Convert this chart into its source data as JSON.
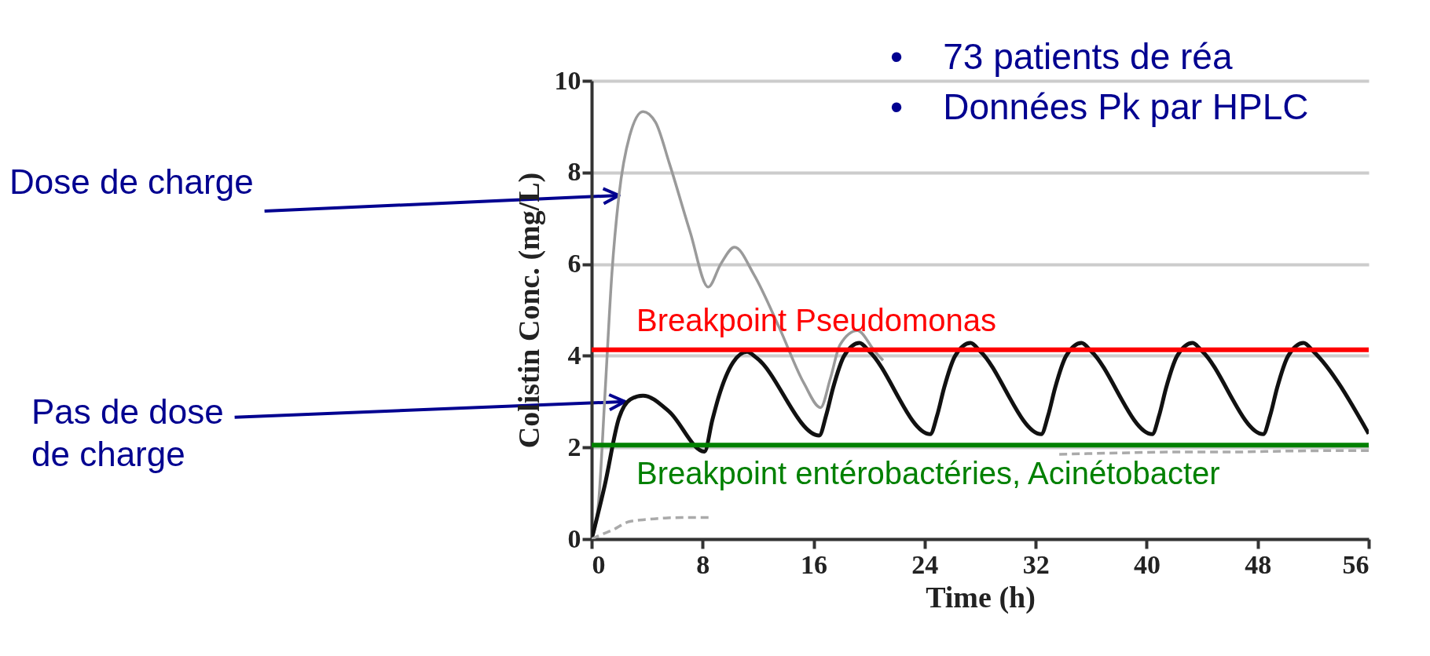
{
  "chart_data": {
    "type": "line",
    "xlabel": "Time (h)",
    "ylabel": "Colistin Conc. (mg/L)",
    "xlim": [
      0,
      56
    ],
    "ylim": [
      0,
      10
    ],
    "xticks": [
      0,
      8,
      16,
      24,
      32,
      40,
      48,
      56
    ],
    "yticks": [
      0,
      2,
      4,
      6,
      8,
      10
    ],
    "grid": "y",
    "series": [
      {
        "color": "#9a9a9a",
        "line_style": "solid",
        "x": [
          0,
          0.5,
          0.95,
          1.46,
          1.97,
          2.74,
          3.7,
          4.6,
          5.6,
          7.1,
          8.4,
          9.3,
          10.3,
          11.7,
          13.5,
          15.3,
          16.5,
          17.2,
          17.9,
          19.15,
          20.4,
          21
        ],
        "values": [
          0,
          0.8,
          3.1,
          5.8,
          7.5,
          8.8,
          9.33,
          9.1,
          8.2,
          6.7,
          5.5,
          6.0,
          6.37,
          5.77,
          4.63,
          3.4,
          2.87,
          3.5,
          4.24,
          4.55,
          4.1,
          3.9
        ]
      },
      {
        "color": "#111111",
        "line_style": "solid",
        "x": [
          0,
          0.95,
          1.97,
          2.8,
          3.7,
          5.56,
          8.13,
          8.7,
          9.15,
          10.2,
          11.2,
          11.9,
          16.4,
          16.9,
          17.4,
          18.2,
          19.3,
          20.0,
          24.4,
          24.9,
          25.4,
          26.2,
          27.3,
          28.0,
          32.4,
          32.9,
          33.4,
          34.2,
          35.3,
          36.0,
          40.4,
          40.9,
          41.4,
          42.2,
          43.3,
          44.0,
          48.4,
          48.9,
          49.4,
          50.2,
          51.3,
          52.0,
          56
        ],
        "values": [
          0,
          1.18,
          2.64,
          3.05,
          3.13,
          2.79,
          1.91,
          2.6,
          3.1,
          3.86,
          4.09,
          3.95,
          2.26,
          2.7,
          3.3,
          4.0,
          4.28,
          4.1,
          2.29,
          2.7,
          3.3,
          4.0,
          4.28,
          4.1,
          2.29,
          2.7,
          3.3,
          4.0,
          4.28,
          4.1,
          2.29,
          2.7,
          3.3,
          4.0,
          4.28,
          4.1,
          2.29,
          2.7,
          3.3,
          4.0,
          4.28,
          4.1,
          2.3
        ]
      },
      {
        "color": "#aaaaaa",
        "line_style": "dashed",
        "x": [
          0,
          0.7,
          1.46,
          2.7,
          4,
          5.3,
          6.5,
          8.5,
          20,
          33.7,
          38,
          42,
          46,
          50,
          54,
          56
        ],
        "values": [
          0,
          0.1,
          0.19,
          0.38,
          0.43,
          0.46,
          0.47,
          0.47,
          null,
          1.85,
          1.88,
          1.9,
          1.9,
          1.92,
          1.93,
          1.93
        ]
      }
    ],
    "ref_lines": [
      {
        "axis": "y",
        "value": 4.13,
        "label": "Breakpoint Pseudomonas",
        "color": "#ff0000"
      },
      {
        "axis": "y",
        "value": 2.05,
        "label": "Breakpoint entérobactéries, Acinétobacter",
        "color": "#008000"
      }
    ],
    "annotations": [
      {
        "text": "Dose de charge",
        "x": 1.97,
        "y": 7.5
      },
      {
        "text": "Pas de dose de charge",
        "x": 2.4,
        "y": 3.0
      },
      "•    73 patients de réa",
      "•    Données Pk par HPLC"
    ]
  }
}
